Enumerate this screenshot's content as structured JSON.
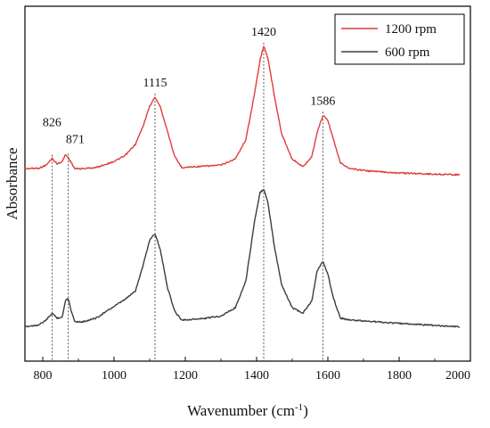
{
  "chart_data": {
    "type": "line",
    "title": "",
    "xlabel": "Wavenumber (cm⁻¹)",
    "ylabel": "Absorbance",
    "xlim": [
      750,
      2000
    ],
    "xticks": [
      800,
      1000,
      1200,
      1400,
      1600,
      1800,
      2000
    ],
    "y_ticks_shown": false,
    "grid": false,
    "legend_position": "top-right",
    "series": [
      {
        "name": "1200 rpm",
        "color": "#e03c3c",
        "x": [
          750,
          790,
          810,
          826,
          840,
          855,
          863,
          871,
          880,
          890,
          910,
          950,
          1000,
          1030,
          1060,
          1080,
          1100,
          1115,
          1130,
          1150,
          1170,
          1190,
          1250,
          1300,
          1340,
          1370,
          1395,
          1410,
          1420,
          1432,
          1450,
          1470,
          1500,
          1530,
          1555,
          1570,
          1586,
          1600,
          1615,
          1635,
          1660,
          1720,
          1800,
          1900,
          1970
        ],
        "y": [
          0.1,
          0.11,
          0.16,
          0.27,
          0.18,
          0.22,
          0.33,
          0.29,
          0.2,
          0.1,
          0.1,
          0.12,
          0.22,
          0.31,
          0.5,
          0.78,
          1.13,
          1.28,
          1.12,
          0.72,
          0.3,
          0.12,
          0.14,
          0.16,
          0.26,
          0.58,
          1.36,
          1.9,
          2.12,
          1.92,
          1.3,
          0.68,
          0.26,
          0.13,
          0.3,
          0.7,
          0.98,
          0.9,
          0.6,
          0.2,
          0.1,
          0.06,
          0.03,
          0.01,
          0.0
        ]
      },
      {
        "name": "600 rpm",
        "color": "#3d3d3d",
        "x": [
          750,
          790,
          810,
          826,
          840,
          855,
          863,
          871,
          880,
          890,
          910,
          950,
          1000,
          1030,
          1060,
          1080,
          1100,
          1115,
          1130,
          1150,
          1170,
          1190,
          1250,
          1300,
          1340,
          1370,
          1395,
          1410,
          1420,
          1432,
          1450,
          1470,
          1500,
          1530,
          1555,
          1570,
          1586,
          1600,
          1615,
          1635,
          1660,
          1720,
          1800,
          1900,
          1970
        ],
        "y": [
          0.02,
          0.05,
          0.12,
          0.22,
          0.15,
          0.16,
          0.4,
          0.45,
          0.25,
          0.1,
          0.09,
          0.15,
          0.32,
          0.42,
          0.55,
          0.9,
          1.3,
          1.4,
          1.15,
          0.6,
          0.25,
          0.12,
          0.14,
          0.18,
          0.3,
          0.7,
          1.6,
          2.0,
          2.05,
          1.85,
          1.2,
          0.65,
          0.3,
          0.22,
          0.4,
          0.85,
          0.98,
          0.8,
          0.45,
          0.15,
          0.12,
          0.1,
          0.07,
          0.04,
          0.02
        ]
      }
    ],
    "annotations": [
      {
        "label": "826",
        "x": 826
      },
      {
        "label": "871",
        "x": 871
      },
      {
        "label": "1115",
        "x": 1115
      },
      {
        "label": "1420",
        "x": 1420
      },
      {
        "label": "1586",
        "x": 1586
      }
    ]
  }
}
